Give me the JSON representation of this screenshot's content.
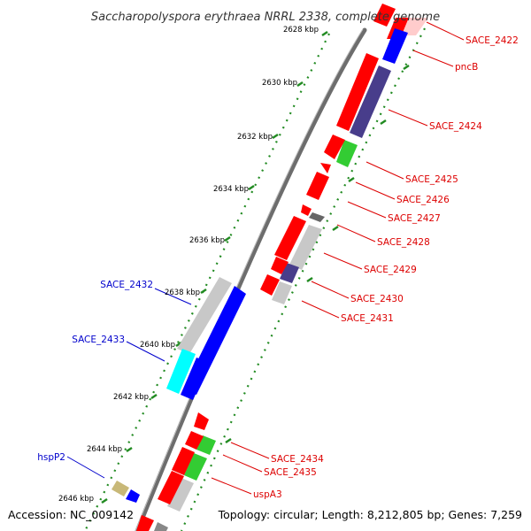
{
  "title": "Saccharopolyspora erythraea NRRL 2338, complete genome",
  "footer": {
    "accession": "Accession: NC_009142",
    "topology": "Topology: circular; Length: 8,212,805 bp; Genes: 7,259"
  },
  "kbp_labels": [
    "2628 kbp",
    "2630 kbp",
    "2632 kbp",
    "2634 kbp",
    "2636 kbp",
    "2638 kbp",
    "2640 kbp",
    "2642 kbp",
    "2644 kbp",
    "2646 kbp"
  ],
  "gene_labels_right": [
    "SACE_2422",
    "pncB",
    "SACE_2424",
    "SACE_2425",
    "SACE_2426",
    "SACE_2427",
    "SACE_2428",
    "SACE_2429",
    "SACE_2430",
    "SACE_2431",
    "SACE_2434",
    "SACE_2435",
    "uspA3"
  ],
  "gene_labels_left": [
    "SACE_2432",
    "SACE_2433",
    "hspP2"
  ],
  "colors": {
    "red": "#ff0000",
    "blue": "#0000ff",
    "dark_blue": "#483d8b",
    "green": "#33cc33",
    "gray": "#c8c8c8",
    "dark_gray": "#666666",
    "cyan": "#00ffff",
    "khaki": "#c8b878",
    "label_red": "#dd0000",
    "label_blue": "#0000cc",
    "axis_green": "#228b22"
  }
}
